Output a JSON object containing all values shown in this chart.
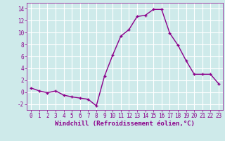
{
  "x": [
    0,
    1,
    2,
    3,
    4,
    5,
    6,
    7,
    8,
    9,
    10,
    11,
    12,
    13,
    14,
    15,
    16,
    17,
    18,
    19,
    20,
    21,
    22,
    23
  ],
  "y": [
    0.7,
    0.2,
    -0.1,
    0.2,
    -0.5,
    -0.8,
    -1.0,
    -1.2,
    -2.3,
    2.7,
    6.2,
    9.4,
    10.5,
    12.7,
    12.9,
    13.9,
    13.9,
    9.9,
    7.9,
    5.3,
    3.0,
    3.0,
    3.0,
    1.4
  ],
  "line_color": "#8b008b",
  "marker": "+",
  "marker_size": 3,
  "linewidth": 1.0,
  "xlabel": "Windchill (Refroidissement éolien,°C)",
  "xlim": [
    -0.5,
    23.5
  ],
  "ylim": [
    -3,
    15
  ],
  "yticks": [
    -2,
    0,
    2,
    4,
    6,
    8,
    10,
    12,
    14
  ],
  "xticks": [
    0,
    1,
    2,
    3,
    4,
    5,
    6,
    7,
    8,
    9,
    10,
    11,
    12,
    13,
    14,
    15,
    16,
    17,
    18,
    19,
    20,
    21,
    22,
    23
  ],
  "background_color": "#ceeaea",
  "grid_color": "#ffffff",
  "tick_fontsize": 5.5,
  "xlabel_fontsize": 6.5
}
